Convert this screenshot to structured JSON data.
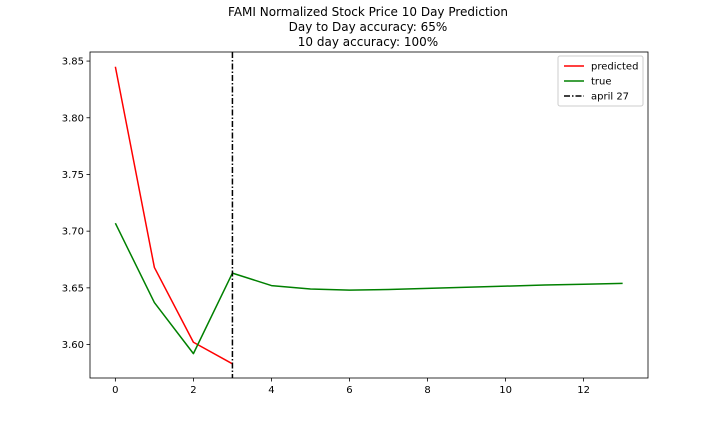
{
  "chart_data": {
    "type": "line",
    "title_lines": [
      "FAMI Normalized Stock Price 10 Day Prediction",
      "Day to Day accuracy: 65%",
      "10 day accuracy: 100%"
    ],
    "xlim": [
      -0.65,
      13.65
    ],
    "ylim": [
      3.5705,
      3.858
    ],
    "x_ticks": [
      0,
      2,
      4,
      6,
      8,
      10,
      12
    ],
    "y_ticks": [
      3.6,
      3.65,
      3.7,
      3.75,
      3.8,
      3.85
    ],
    "x_tick_labels": [
      "0",
      "2",
      "4",
      "6",
      "8",
      "10",
      "12"
    ],
    "y_tick_labels": [
      "3.60",
      "3.65",
      "3.70",
      "3.75",
      "3.80",
      "3.85"
    ],
    "series": [
      {
        "name": "predicted",
        "color": "#ff0000",
        "x": [
          0,
          1,
          2,
          3
        ],
        "y": [
          3.845,
          3.668,
          3.602,
          3.583
        ]
      },
      {
        "name": "true",
        "color": "#008000",
        "x": [
          0,
          1,
          2,
          3,
          4,
          5,
          6,
          7,
          8,
          9,
          10,
          11,
          12,
          13
        ],
        "y": [
          3.707,
          3.637,
          3.592,
          3.663,
          3.652,
          3.649,
          3.648,
          3.6485,
          3.6495,
          3.6505,
          3.6515,
          3.6525,
          3.6532,
          3.654
        ]
      }
    ],
    "vline": {
      "name": "april 27",
      "x": 3,
      "color": "#000000",
      "style": "dashdot"
    },
    "legend_position": "top-right",
    "grid": false
  }
}
